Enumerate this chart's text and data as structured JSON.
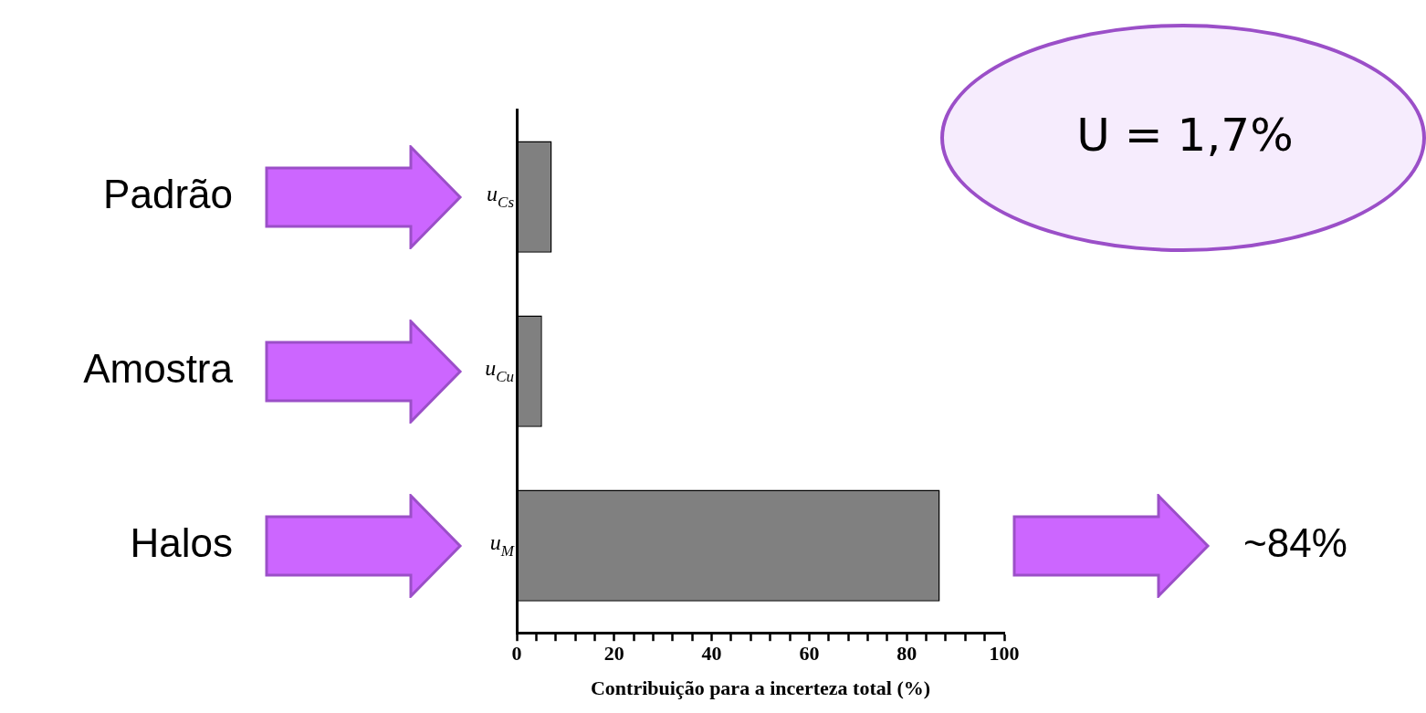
{
  "chart_data": {
    "type": "bar",
    "orientation": "horizontal",
    "categories": [
      "u$_{Cs}$",
      "u$_{Cu}$",
      "u$_{M}$"
    ],
    "values": [
      7.2,
      5.2,
      86.8
    ],
    "color": "#808080",
    "xlim": [
      0,
      100
    ],
    "xticks": [
      0,
      {
        "value": 4,
        "label": null
      },
      {
        "value": 8,
        "label": null
      },
      {
        "value": 12,
        "label": null
      },
      {
        "value": 16,
        "label": null
      },
      20,
      {
        "value": 24,
        "label": null
      },
      {
        "value": 28,
        "label": null
      },
      {
        "value": 32,
        "label": null
      },
      {
        "value": 36,
        "label": null
      },
      40,
      {
        "value": 44,
        "label": null
      },
      {
        "value": 48,
        "label": null
      },
      {
        "value": 52,
        "label": null
      },
      {
        "value": 56,
        "label": null
      },
      60,
      {
        "value": 64,
        "label": null
      },
      {
        "value": 68,
        "label": null
      },
      {
        "value": 72,
        "label": null
      },
      {
        "value": 76,
        "label": null
      },
      80,
      {
        "value": 84,
        "label": null
      },
      {
        "value": 88,
        "label": null
      },
      {
        "value": 92,
        "label": null
      },
      {
        "value": 96,
        "label": null
      },
      100
    ],
    "xlabel": "Contribuição para a incerteza total (%)",
    "grid": false,
    "legend": false,
    "annotations": [
      "Padrão",
      "Amostra",
      "Halos",
      "~84%",
      "U = 1,7%"
    ]
  }
}
